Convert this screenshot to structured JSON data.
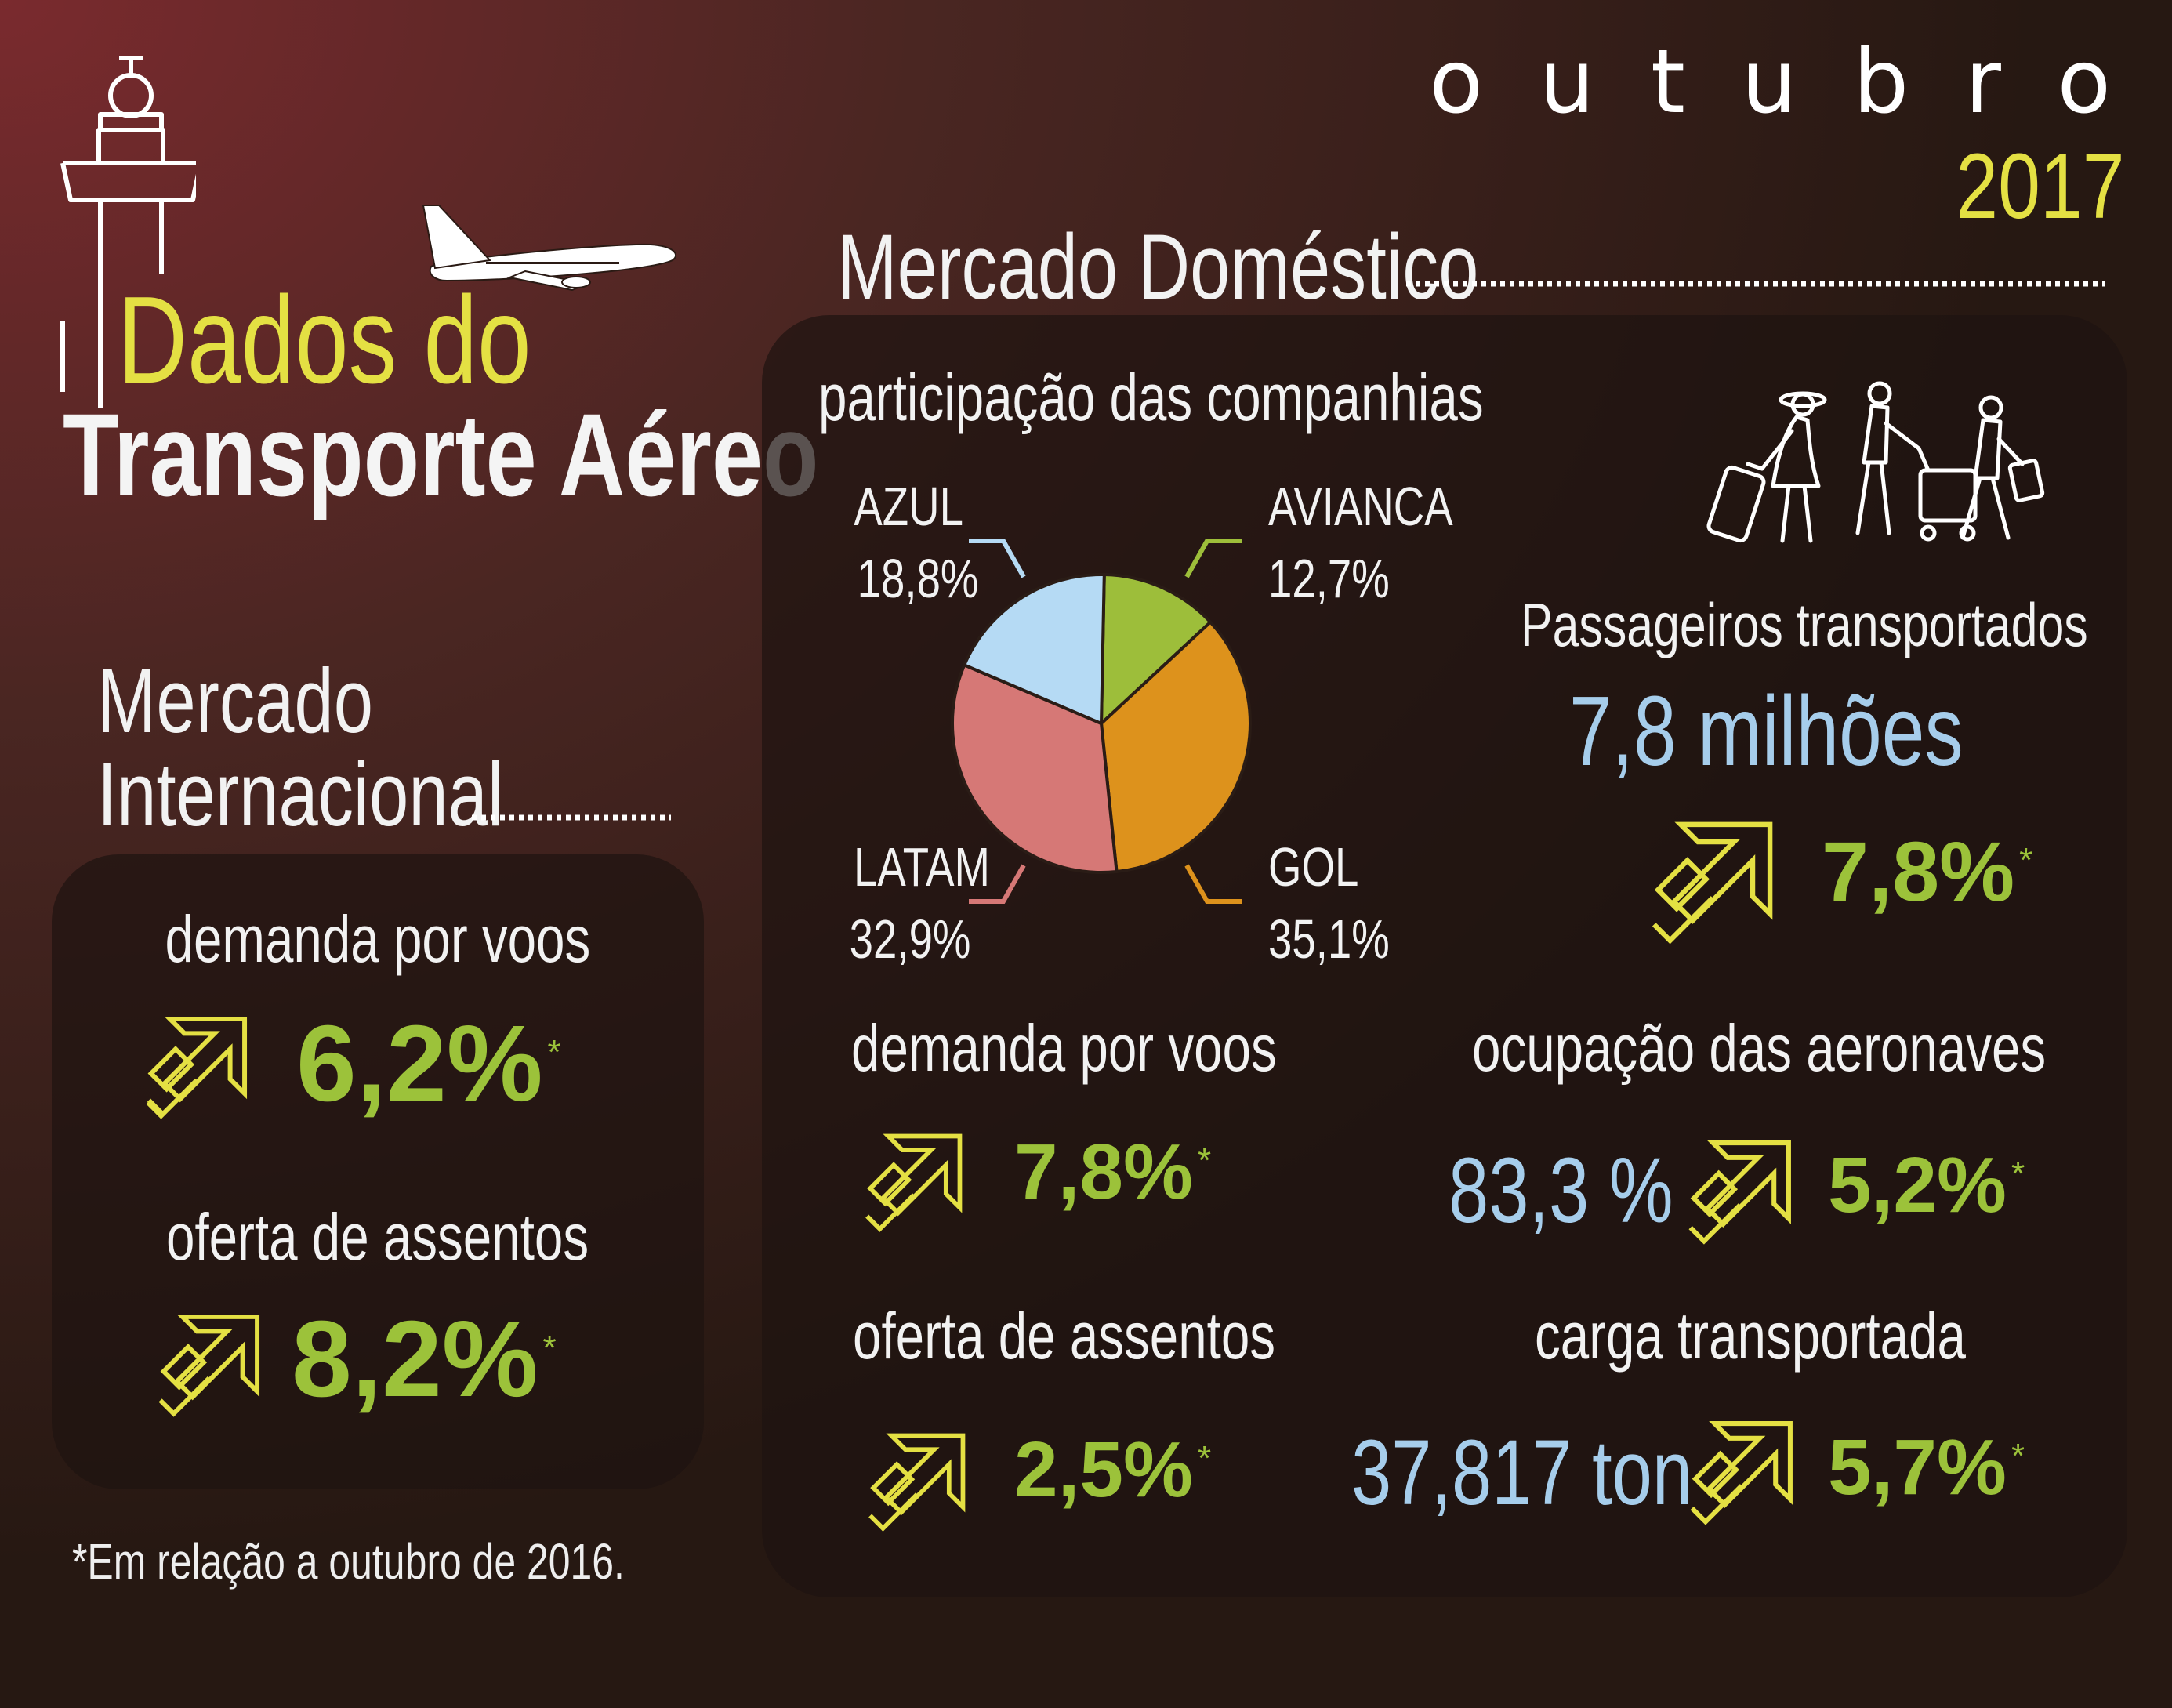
{
  "header": {
    "month": "o u t u b r o",
    "year": "2017",
    "title_line1": "Dados do",
    "title_line2": "Transporte Aéreo",
    "icons": [
      "control-tower-icon",
      "airplane-icon",
      "travelers-icon"
    ]
  },
  "international": {
    "heading_line1": "Mercado",
    "heading_line2": "Internacional",
    "demanda_label": "demanda por voos",
    "demanda_value": "6,2%",
    "oferta_label": "oferta de assentos",
    "oferta_value": "8,2%",
    "asterisk": "*"
  },
  "domestic": {
    "heading": "Mercado Doméstico",
    "participacao_label": "participação das companhias",
    "passageiros_label": "Passageiros transportados",
    "passageiros_value": "7,8 milhões",
    "passageiros_growth": "7,8%",
    "demanda_label": "demanda por voos",
    "demanda_value": "7,8%",
    "oferta_label": "oferta de assentos",
    "oferta_value": "2,5%",
    "ocupacao_label": "ocupação das aeronaves",
    "ocupacao_value": "83,3 %",
    "ocupacao_growth": "5,2%",
    "carga_label": "carga transportada",
    "carga_value": "37,817 ton",
    "carga_growth": "5,7%",
    "asterisk": "*"
  },
  "footnote": "*Em relação a outubro de 2016.",
  "colors": {
    "yellow": "#e4e043",
    "green": "#9cc23a",
    "blue": "#a6cdeb"
  },
  "chart_data": {
    "type": "pie",
    "title": "participação das companhias",
    "slices": [
      {
        "label": "AVIANCA",
        "value": 12.7,
        "display": "12,7%",
        "color": "#9dbe3a"
      },
      {
        "label": "GOL",
        "value": 35.1,
        "display": "35,1%",
        "color": "#dd921c"
      },
      {
        "label": "LATAM",
        "value": 32.9,
        "display": "32,9%",
        "color": "#d67876"
      },
      {
        "label": "AZUL",
        "value": 18.8,
        "display": "18,8%",
        "color": "#b5daf4"
      }
    ]
  }
}
